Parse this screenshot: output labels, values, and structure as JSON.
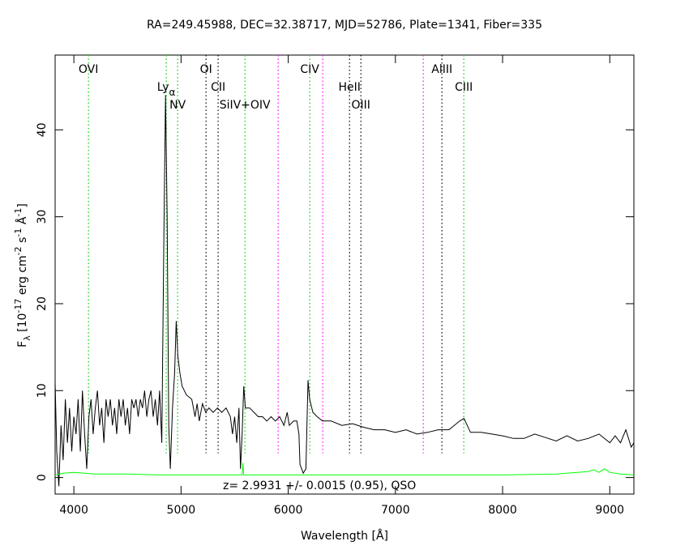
{
  "chart_data": {
    "type": "line",
    "title": "RA=249.45988, DEC=32.38717, MJD=52786, Plate=1341, Fiber=335",
    "x_label": "Wavelength [Å]",
    "y_label_parts": [
      {
        "text": "F"
      },
      {
        "text": "λ",
        "shift": "sub"
      },
      {
        "text": " [10"
      },
      {
        "text": "-17",
        "shift": "sup"
      },
      {
        "text": " erg cm"
      },
      {
        "text": "-2",
        "shift": "sup"
      },
      {
        "text": " s"
      },
      {
        "text": "-1",
        "shift": "sup"
      },
      {
        "text": " Å"
      },
      {
        "text": "-1",
        "shift": "sup"
      },
      {
        "text": "]"
      }
    ],
    "annotation": "z= 2.9931 +/- 0.0015 (0.95), QSO",
    "xlim": [
      3825,
      9225
    ],
    "ylim": [
      -1.9,
      48.6
    ],
    "xticks": [
      4000,
      5000,
      6000,
      7000,
      8000,
      9000
    ],
    "yticks": [
      0,
      10,
      20,
      30,
      40
    ],
    "series": [
      {
        "color": "#000000",
        "x": [
          3825,
          3840,
          3860,
          3880,
          3900,
          3920,
          3940,
          3960,
          3980,
          4000,
          4020,
          4040,
          4060,
          4080,
          4100,
          4120,
          4140,
          4160,
          4180,
          4200,
          4220,
          4240,
          4260,
          4280,
          4300,
          4320,
          4340,
          4360,
          4380,
          4400,
          4420,
          4440,
          4460,
          4480,
          4500,
          4520,
          4540,
          4560,
          4580,
          4600,
          4620,
          4640,
          4660,
          4680,
          4700,
          4720,
          4740,
          4760,
          4780,
          4800,
          4820,
          4840,
          4855,
          4870,
          4885,
          4900,
          4920,
          4940,
          4955,
          4970,
          4990,
          5010,
          5050,
          5100,
          5130,
          5150,
          5170,
          5200,
          5230,
          5260,
          5300,
          5340,
          5380,
          5420,
          5460,
          5480,
          5500,
          5520,
          5540,
          5555,
          5570,
          5585,
          5600,
          5640,
          5680,
          5720,
          5760,
          5800,
          5840,
          5880,
          5920,
          5960,
          5990,
          6010,
          6050,
          6080,
          6100,
          6110,
          6140,
          6165,
          6185,
          6200,
          6230,
          6270,
          6320,
          6400,
          6500,
          6600,
          6700,
          6800,
          6900,
          7000,
          7100,
          7200,
          7300,
          7400,
          7500,
          7600,
          7640,
          7700,
          7800,
          7900,
          8000,
          8100,
          8200,
          8300,
          8400,
          8500,
          8600,
          8700,
          8800,
          8900,
          9000,
          9050,
          9100,
          9150,
          9200,
          9225
        ],
        "values": [
          11,
          3,
          -1,
          6,
          2,
          9,
          4,
          8,
          3,
          7,
          5,
          9,
          3,
          10,
          5,
          1,
          7,
          9,
          5,
          8,
          10,
          6,
          8,
          4,
          9,
          7,
          9,
          6,
          8,
          5,
          9,
          7,
          9,
          6,
          8,
          5,
          9,
          8,
          9,
          7,
          9,
          8,
          10,
          7,
          9,
          10,
          7,
          9,
          6,
          10,
          4,
          28,
          44,
          30,
          6,
          1,
          8,
          12,
          18,
          14,
          12,
          10.5,
          9.5,
          9,
          7,
          8.5,
          6.5,
          8.5,
          7.5,
          8,
          7.5,
          8,
          7.5,
          8,
          7,
          5,
          7,
          4,
          8,
          1,
          5,
          10.5,
          8,
          8,
          7.5,
          7,
          7,
          6.5,
          7,
          6.5,
          7,
          6,
          7.5,
          6,
          6.5,
          6.5,
          5,
          1.5,
          0.5,
          1,
          11.2,
          9,
          7.5,
          7,
          6.5,
          6.5,
          6,
          6.2,
          5.8,
          5.5,
          5.5,
          5.2,
          5.5,
          5,
          5.2,
          5.5,
          5.5,
          6.5,
          6.8,
          5.2,
          5.2,
          5,
          4.8,
          4.5,
          4.5,
          5,
          4.6,
          4.2,
          4.8,
          4.2,
          4.5,
          5,
          4,
          4.8,
          4,
          5.5,
          3.5,
          4
        ]
      },
      {
        "color": "#00ff00",
        "x": [
          3825,
          3900,
          4000,
          4200,
          4500,
          4800,
          5000,
          5500,
          5570,
          5577,
          5585,
          5700,
          6000,
          6500,
          7000,
          7500,
          8000,
          8500,
          8700,
          8800,
          8850,
          8900,
          8950,
          9000,
          9100,
          9225
        ],
        "values": [
          0.3,
          0.5,
          0.6,
          0.4,
          0.4,
          0.3,
          0.3,
          0.3,
          0.3,
          1.7,
          0.3,
          0.3,
          0.3,
          0.3,
          0.3,
          0.3,
          0.3,
          0.4,
          0.6,
          0.7,
          0.9,
          0.6,
          1.0,
          0.6,
          0.4,
          0.3
        ]
      }
    ],
    "lines": [
      {
        "label": "OVI",
        "wavelength": 4136,
        "color": "#00cc00"
      },
      {
        "label": "Ly",
        "subscript": "α",
        "wavelength": 4862,
        "color": "#00cc00"
      },
      {
        "label": "NV",
        "wavelength": 4968,
        "color": "#00cc00"
      },
      {
        "label": "OI",
        "wavelength": 5233,
        "color": "#000000"
      },
      {
        "label": "CII",
        "wavelength": 5346,
        "color": "#000000"
      },
      {
        "label": "SiIV+OIV",
        "wavelength": 5596,
        "color": "#00cc00"
      },
      {
        "wavelength": 5906,
        "color": "#ff00ff"
      },
      {
        "label": "CIV",
        "wavelength": 6201,
        "color": "#00cc00"
      },
      {
        "wavelength": 6322,
        "color": "#ff00ff"
      },
      {
        "label": "HeII",
        "wavelength": 6572,
        "color": "#000000"
      },
      {
        "label": "OIII",
        "wavelength": 6678,
        "color": "#000000"
      },
      {
        "wavelength": 7260,
        "color": "#ff00ff"
      },
      {
        "label": "AlIII",
        "wavelength": 7434,
        "color": "#000000"
      },
      {
        "label": "CIII",
        "wavelength": 7638,
        "color": "#00cc00"
      }
    ]
  }
}
